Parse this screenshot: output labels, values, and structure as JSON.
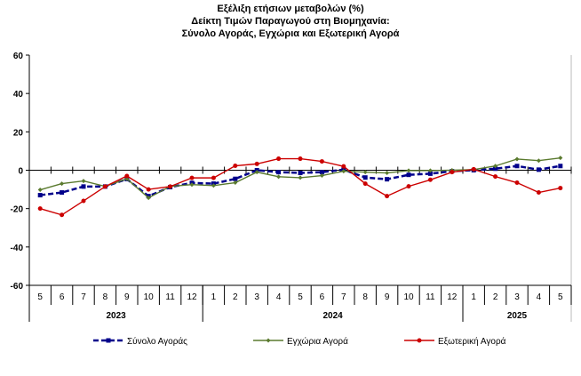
{
  "chart_data": {
    "type": "line",
    "title": [
      "Εξέλιξη ετήσιων μεταβολών (%)",
      "Δείκτη Τιμών Παραγωγού στη Βιομηχανία:",
      "Σύνολο Αγοράς, Εγχώρια και Εξωτερική Αγορά"
    ],
    "categories": [
      "5",
      "6",
      "7",
      "8",
      "9",
      "10",
      "11",
      "12",
      "1",
      "2",
      "3",
      "4",
      "5",
      "6",
      "7",
      "8",
      "9",
      "10",
      "11",
      "12",
      "1",
      "2",
      "3",
      "4",
      "5"
    ],
    "years": [
      {
        "label": "2023",
        "span": 8
      },
      {
        "label": "2024",
        "span": 12
      },
      {
        "label": "2025",
        "span": 5
      }
    ],
    "ylim": [
      -60,
      60
    ],
    "yticks": [
      60,
      40,
      20,
      0,
      -20,
      -40,
      -60
    ],
    "grid": false,
    "legend_position": "bottom",
    "series": [
      {
        "name": "Σύνολο Αγοράς",
        "color": "#00008B",
        "style": "dashed-square",
        "values": [
          -13,
          -11.6,
          -8.5,
          -8.5,
          -4.6,
          -13.5,
          -8.8,
          -6.6,
          -7,
          -4.5,
          0,
          -1,
          -1.4,
          -1,
          0.3,
          -3.8,
          -4.7,
          -2.4,
          -1.8,
          -0.5,
          0,
          0.8,
          2.2,
          0.3,
          2.2
        ]
      },
      {
        "name": "Εγχώρια Αγορά",
        "color": "#5A7A2E",
        "style": "line-diamond",
        "values": [
          -10.2,
          -7,
          -5.6,
          -8.4,
          -4.5,
          -14.4,
          -8.4,
          -7.5,
          -8,
          -6.5,
          -1,
          -3.4,
          -3.9,
          -2.8,
          -0.5,
          -1,
          -1.4,
          -0.2,
          -0.2,
          0,
          0.3,
          2.2,
          5.8,
          5,
          6.4
        ]
      },
      {
        "name": "Εξωτερική Αγορά",
        "color": "#CC0000",
        "style": "line-circle",
        "values": [
          -20,
          -23.3,
          -16,
          -8.5,
          -3,
          -10,
          -8.5,
          -4,
          -4,
          2.3,
          3.3,
          6,
          6,
          4.6,
          2,
          -7,
          -13.5,
          -8.4,
          -5,
          -1,
          0.5,
          -3.3,
          -6.5,
          -11.6,
          -9.3
        ]
      }
    ]
  }
}
